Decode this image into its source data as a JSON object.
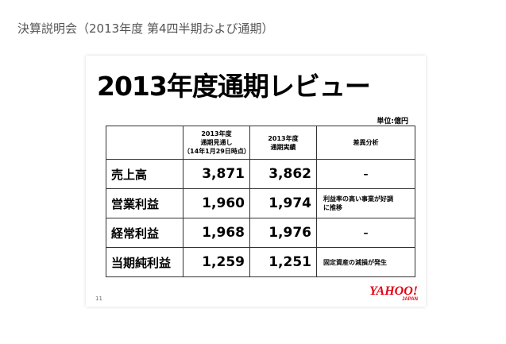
{
  "header": {
    "title": "決算説明会（2013年度 第4四半期および通期）"
  },
  "slide": {
    "title": "2013年度通期レビュー",
    "unit": "単位:億円",
    "page_number": "11",
    "logo": "YAHOO!",
    "logo_sub": "JAPAN"
  },
  "table": {
    "columns": [
      [
        "2013年度",
        "通期見通し",
        "（14年1月29日時点）"
      ],
      [
        "2013年度",
        "通期実績"
      ],
      [
        "差異分析"
      ]
    ],
    "rows": [
      [
        "売上高",
        "3,871",
        "3,862",
        "–"
      ],
      [
        "営業利益",
        "1,960",
        "1,974",
        "利益率の高い事業が好調に推移"
      ],
      [
        "経常利益",
        "1,968",
        "1,976",
        "–"
      ],
      [
        "当期純利益",
        "1,259",
        "1,251",
        "固定資産の減損が発生"
      ]
    ]
  }
}
